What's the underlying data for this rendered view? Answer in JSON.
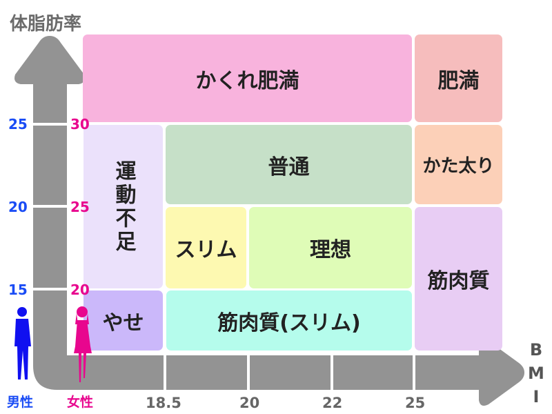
{
  "y_axis_label": "体脂肪率",
  "x_axis_label": "BMI",
  "male": {
    "label": "男性",
    "ticks": [
      "25",
      "20",
      "15"
    ],
    "color": "#1a4cf5"
  },
  "female": {
    "label": "女性",
    "ticks": [
      "30",
      "25",
      "20"
    ],
    "color": "#e8068e"
  },
  "x_ticks": [
    "18.5",
    "20",
    "22",
    "25"
  ],
  "axis_color": "#939393",
  "regions": [
    {
      "label": "かくれ肥満",
      "color": "#f8b3dd"
    },
    {
      "label": "肥満",
      "color": "#f6bdbd"
    },
    {
      "label": "運動不足",
      "color": "#ebe1fb"
    },
    {
      "label": "普通",
      "color": "#c6e0c8"
    },
    {
      "label": "かた太り",
      "color": "#fcd0b8"
    },
    {
      "label": "スリム",
      "color": "#fdf9b1"
    },
    {
      "label": "理想",
      "color": "#dffcb7"
    },
    {
      "label": "筋肉質",
      "color": "#e8cdf4"
    },
    {
      "label": "やせ",
      "color": "#cbb8fa"
    },
    {
      "label": "筋肉質(スリム)",
      "color": "#b5fcec"
    }
  ]
}
